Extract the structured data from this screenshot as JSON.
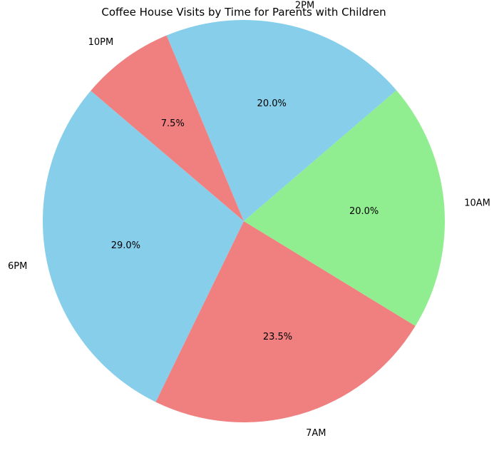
{
  "chart_data": {
    "type": "pie",
    "title": "Coffee House Visits by Time for Parents with Children",
    "categories": [
      "7AM",
      "10AM",
      "2PM",
      "10PM",
      "6PM"
    ],
    "values": [
      23.5,
      20.0,
      20.0,
      7.5,
      29.0
    ],
    "percent_labels": [
      "23.5%",
      "20.0%",
      "20.0%",
      "7.5%",
      "29.0%"
    ],
    "colors": [
      "#f08080",
      "#90ee90",
      "#87ceeb",
      "#f08080",
      "#87ceeb"
    ],
    "start_angle_deg": 244,
    "direction": "counterclockwise",
    "legend": "none"
  }
}
